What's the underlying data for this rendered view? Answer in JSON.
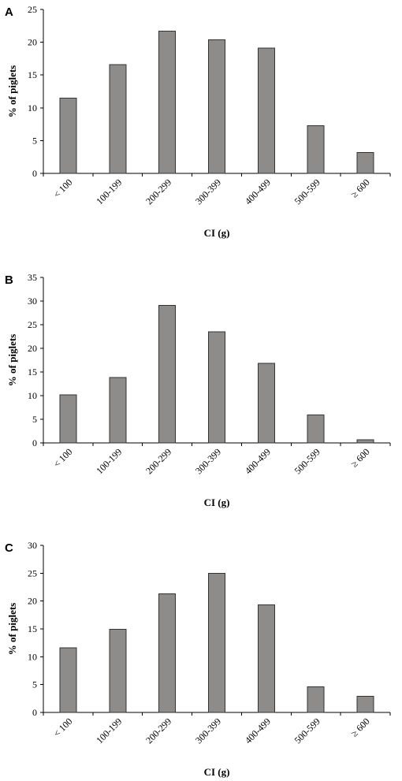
{
  "colors": {
    "bar_fill": "#8e8b8b",
    "bar_stroke": "#333333",
    "axis": "#000000"
  },
  "chart_data": [
    {
      "panel": "A",
      "type": "bar",
      "categories": [
        "< 100",
        "100-199",
        "200-299",
        "300-399",
        "400-499",
        "500-599",
        "≥ 600"
      ],
      "values": [
        11.5,
        16.6,
        21.7,
        20.4,
        19.1,
        7.3,
        3.2
      ],
      "xlabel": "CI (g)",
      "ylabel": "% of piglets",
      "ylim": [
        0,
        25
      ],
      "yticks": [
        0,
        5,
        10,
        15,
        20,
        25
      ],
      "grid": false
    },
    {
      "panel": "B",
      "type": "bar",
      "categories": [
        "< 100",
        "100-199",
        "200-299",
        "300-399",
        "400-499",
        "500-599",
        "≥ 600"
      ],
      "values": [
        10.2,
        13.8,
        29.1,
        23.5,
        16.8,
        5.9,
        0.7
      ],
      "xlabel": "CI (g)",
      "ylabel": "% of piglets",
      "ylim": [
        0,
        35
      ],
      "yticks": [
        0,
        5,
        10,
        15,
        20,
        25,
        30,
        35
      ],
      "grid": false
    },
    {
      "panel": "C",
      "type": "bar",
      "categories": [
        "< 100",
        "100-199",
        "200-299",
        "300-399",
        "400-499",
        "500-599",
        "≥ 600"
      ],
      "values": [
        11.6,
        14.9,
        21.3,
        25.0,
        19.3,
        4.6,
        2.9
      ],
      "xlabel": "CI (g)",
      "ylabel": "% of piglets",
      "ylim": [
        0,
        30
      ],
      "yticks": [
        0,
        5,
        10,
        15,
        20,
        25,
        30
      ],
      "grid": false
    }
  ]
}
